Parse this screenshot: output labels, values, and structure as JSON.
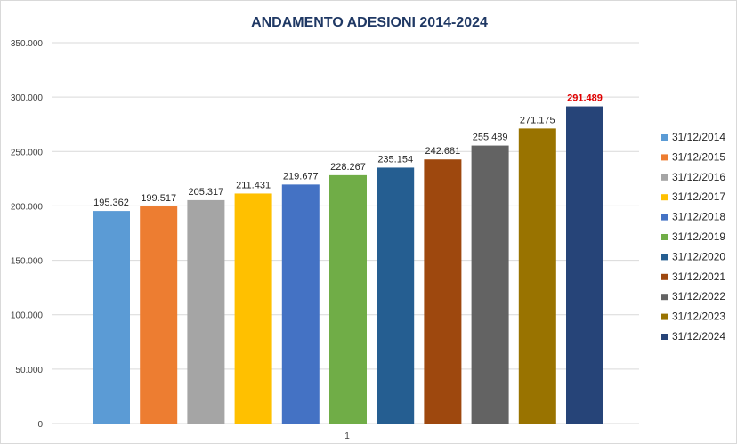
{
  "chart_data": {
    "type": "bar",
    "title": "ANDAMENTO ADESIONI 2014-2024",
    "xlabel": "",
    "ylabel": "",
    "ylim": [
      0,
      350000
    ],
    "yticks": [
      0,
      50000,
      100000,
      150000,
      200000,
      250000,
      300000,
      350000
    ],
    "ytick_labels": [
      "0",
      "50.000",
      "100.000",
      "150.000",
      "200.000",
      "250.000",
      "300.000",
      "350.000"
    ],
    "categories": [
      "1"
    ],
    "grid": true,
    "legend_position": "right",
    "highlight_last": true,
    "series": [
      {
        "name": "31/12/2014",
        "values": [
          195362
        ],
        "label": "195.362",
        "color": "#5b9bd5"
      },
      {
        "name": "31/12/2015",
        "values": [
          199517
        ],
        "label": "199.517",
        "color": "#ed7d31"
      },
      {
        "name": "31/12/2016",
        "values": [
          205317
        ],
        "label": "205.317",
        "color": "#a5a5a5"
      },
      {
        "name": "31/12/2017",
        "values": [
          211431
        ],
        "label": "211.431",
        "color": "#ffc000"
      },
      {
        "name": "31/12/2018",
        "values": [
          219677
        ],
        "label": "219.677",
        "color": "#4472c4"
      },
      {
        "name": "31/12/2019",
        "values": [
          228267
        ],
        "label": "228.267",
        "color": "#70ad47"
      },
      {
        "name": "31/12/2020",
        "values": [
          235154
        ],
        "label": "235.154",
        "color": "#255e91"
      },
      {
        "name": "31/12/2021",
        "values": [
          242681
        ],
        "label": "242.681",
        "color": "#9e480e"
      },
      {
        "name": "31/12/2022",
        "values": [
          255489
        ],
        "label": "255.489",
        "color": "#636363"
      },
      {
        "name": "31/12/2023",
        "values": [
          271175
        ],
        "label": "271.175",
        "color": "#997300"
      },
      {
        "name": "31/12/2024",
        "values": [
          291489
        ],
        "label": "291.489",
        "color": "#264478"
      }
    ]
  }
}
